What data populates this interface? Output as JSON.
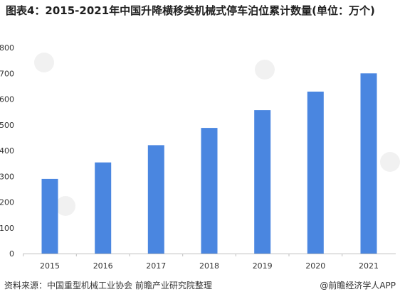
{
  "title": "图表4：2015-2021年中国升降横移类机械式停车泊位累计数量(单位：万个)",
  "source": "资料来源：中国重型机械工业协会 前瞻产业研究院整理",
  "brand": "@前瞻经济学人APP",
  "colors": {
    "bar": "#4a86e0",
    "axis": "#bfbfbf",
    "text": "#333333"
  },
  "chart_data": {
    "type": "bar",
    "categories": [
      "2015",
      "2016",
      "2017",
      "2018",
      "2019",
      "2020",
      "2021"
    ],
    "values": [
      290,
      354,
      421,
      488,
      557,
      629,
      700
    ],
    "ylim": [
      0,
      800
    ],
    "yticks": [
      0,
      100,
      200,
      300,
      400,
      500,
      600,
      700,
      800
    ],
    "grid": false,
    "legend": "none"
  }
}
